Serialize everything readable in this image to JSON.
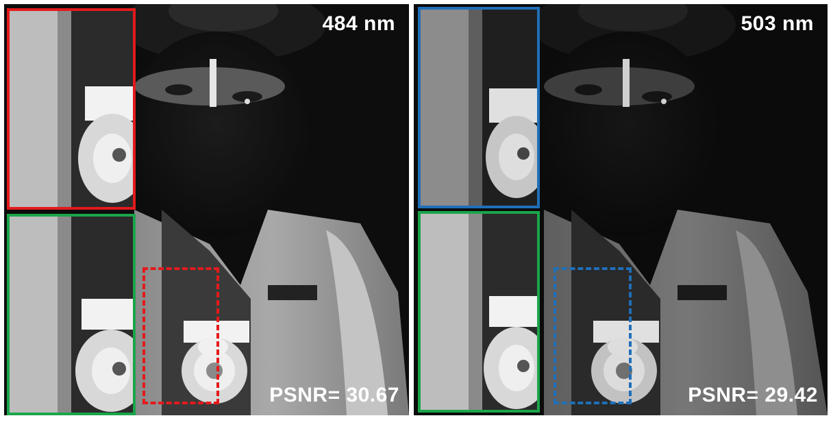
{
  "figure": {
    "panels": [
      {
        "wavelength": "484 nm",
        "psnr": "PSNR= 30.67",
        "inset_top_color": "#e41a1c",
        "inset_bottom_color": "#1aa54b",
        "roi_color": "#e41a1c",
        "brightness": "bright"
      },
      {
        "wavelength": "503 nm",
        "psnr": "PSNR= 29.42",
        "inset_top_color": "#1f6fb8",
        "inset_bottom_color": "#1aa54b",
        "roi_color": "#1f6fb8",
        "brightness": "dim"
      }
    ]
  }
}
